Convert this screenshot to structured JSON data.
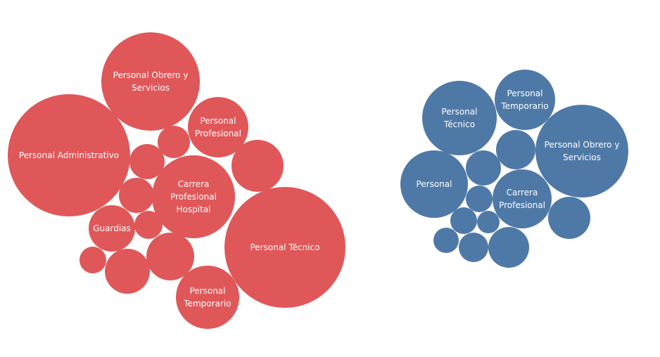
{
  "chart_data": [
    {
      "type": "bubble",
      "color": "#e05759",
      "bubbles": [
        {
          "label": "Personal Administrativo",
          "lines": [
            "Personal Administrativo"
          ]
        },
        {
          "label": "Personal Obrero y Servicios",
          "lines": [
            "Personal Obrero y",
            "Servicios"
          ]
        },
        {
          "label": "Personal Profesional",
          "lines": [
            "Personal",
            "Profesional"
          ]
        },
        {
          "label": "Carrera Profesional Hospital",
          "lines": [
            "Carrera",
            "Profesional",
            "Hospital"
          ]
        },
        {
          "label": "Personal Técnico",
          "lines": [
            "Personal Técnico"
          ]
        },
        {
          "label": "Guardias",
          "lines": [
            "Guardias"
          ]
        },
        {
          "label": "Personal Temporario",
          "lines": [
            "Personal",
            "Temporario"
          ]
        },
        {
          "label": "",
          "lines": []
        },
        {
          "label": "",
          "lines": []
        },
        {
          "label": "",
          "lines": []
        },
        {
          "label": "",
          "lines": []
        },
        {
          "label": "",
          "lines": []
        },
        {
          "label": "",
          "lines": []
        },
        {
          "label": "",
          "lines": []
        },
        {
          "label": "",
          "lines": []
        }
      ]
    },
    {
      "type": "bubble",
      "color": "#4e79a7",
      "bubbles": [
        {
          "label": "Personal Técnico",
          "lines": [
            "Personal",
            "Técnico"
          ]
        },
        {
          "label": "Personal Temporario",
          "lines": [
            "Personal",
            "Temporario"
          ]
        },
        {
          "label": "Personal Obrero y Servicios",
          "lines": [
            "Personal Obrero y",
            "Servicios"
          ]
        },
        {
          "label": "Personal",
          "lines": [
            "Personal"
          ]
        },
        {
          "label": "Carrera Profesional",
          "lines": [
            "Carrera",
            "Profesional"
          ]
        },
        {
          "label": "",
          "lines": []
        },
        {
          "label": "",
          "lines": []
        },
        {
          "label": "",
          "lines": []
        },
        {
          "label": "",
          "lines": []
        },
        {
          "label": "",
          "lines": []
        },
        {
          "label": "",
          "lines": []
        },
        {
          "label": "",
          "lines": []
        },
        {
          "label": "",
          "lines": []
        },
        {
          "label": "",
          "lines": []
        }
      ]
    }
  ]
}
